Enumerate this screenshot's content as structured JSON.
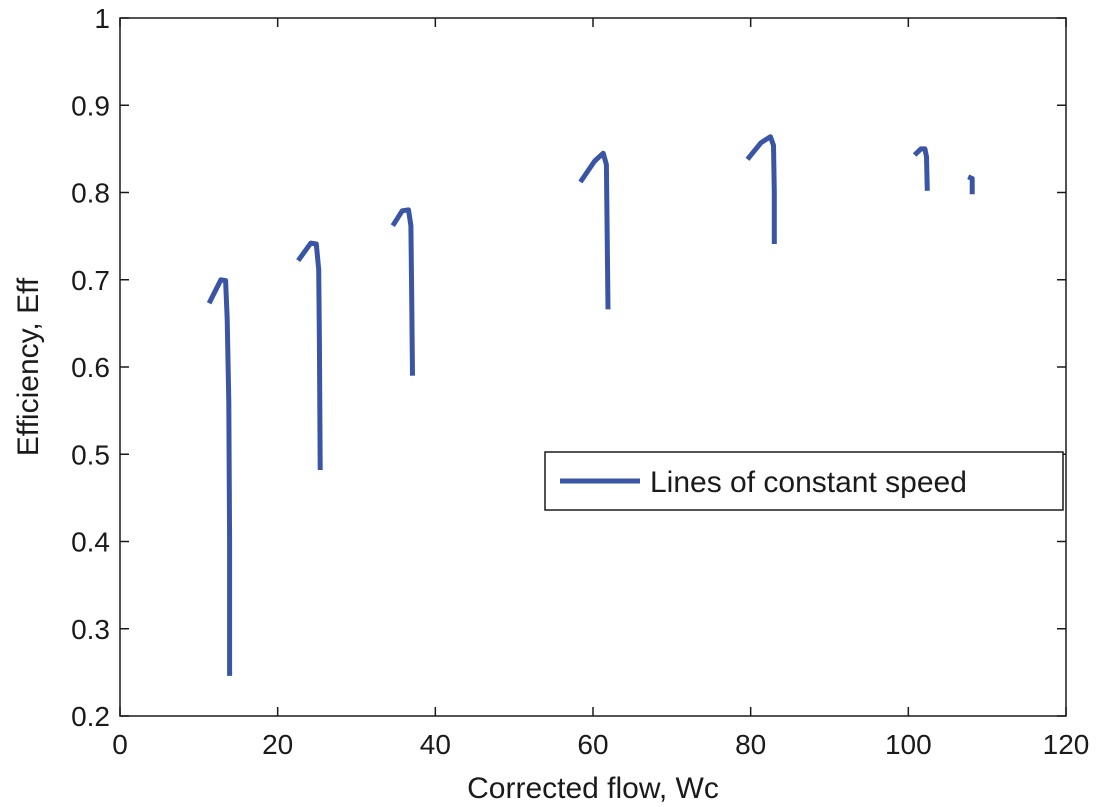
{
  "chart_data": {
    "type": "line",
    "xlabel": "Corrected flow, Wc",
    "ylabel": "Efficiency, Eff",
    "xlim": [
      0,
      120
    ],
    "ylim": [
      0.2,
      1
    ],
    "xticks": [
      0,
      20,
      40,
      60,
      80,
      100,
      120
    ],
    "yticks": [
      0.2,
      0.3,
      0.4,
      0.5,
      0.6,
      0.7,
      0.8,
      0.9,
      1
    ],
    "xtick_labels": [
      "0",
      "20",
      "40",
      "60",
      "80",
      "100",
      "120"
    ],
    "ytick_labels": [
      "0.2",
      "0.3",
      "0.4",
      "0.5",
      "0.6",
      "0.7",
      "0.8",
      "0.9",
      "1"
    ],
    "grid": false,
    "legend": {
      "position": "center-right",
      "entries": [
        "Lines of constant speed"
      ]
    },
    "series_color": "#3a55a4",
    "series": [
      {
        "name": "Lines of constant speed",
        "segments": [
          [
            [
              11.3,
              0.673
            ],
            [
              12.8,
              0.7
            ],
            [
              13.4,
              0.699
            ],
            [
              13.6,
              0.655
            ],
            [
              13.8,
              0.56
            ],
            [
              13.9,
              0.4
            ],
            [
              13.9,
              0.246
            ]
          ],
          [
            [
              22.6,
              0.722
            ],
            [
              24.2,
              0.742
            ],
            [
              24.9,
              0.741
            ],
            [
              25.2,
              0.712
            ],
            [
              25.3,
              0.63
            ],
            [
              25.4,
              0.482
            ]
          ],
          [
            [
              34.6,
              0.762
            ],
            [
              35.8,
              0.779
            ],
            [
              36.6,
              0.78
            ],
            [
              36.9,
              0.762
            ],
            [
              37.0,
              0.68
            ],
            [
              37.1,
              0.59
            ]
          ],
          [
            [
              58.4,
              0.812
            ],
            [
              60.2,
              0.836
            ],
            [
              61.3,
              0.845
            ],
            [
              61.7,
              0.832
            ],
            [
              61.8,
              0.75
            ],
            [
              61.9,
              0.666
            ]
          ],
          [
            [
              79.6,
              0.838
            ],
            [
              81.3,
              0.857
            ],
            [
              82.5,
              0.864
            ],
            [
              82.9,
              0.854
            ],
            [
              83.0,
              0.8
            ],
            [
              83.0,
              0.741
            ]
          ],
          [
            [
              100.8,
              0.843
            ],
            [
              101.6,
              0.85
            ],
            [
              102.1,
              0.85
            ],
            [
              102.3,
              0.841
            ],
            [
              102.4,
              0.802
            ]
          ],
          [
            [
              107.6,
              0.818
            ],
            [
              108.1,
              0.816
            ],
            [
              108.1,
              0.798
            ]
          ]
        ]
      }
    ]
  }
}
